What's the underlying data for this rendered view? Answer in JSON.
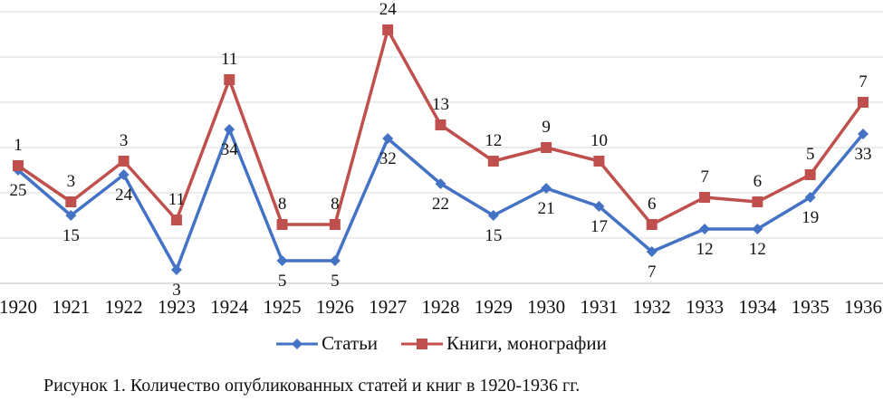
{
  "chart_data": {
    "type": "line",
    "categories": [
      "1920",
      "1921",
      "1922",
      "1923",
      "1924",
      "1925",
      "1926",
      "1927",
      "1928",
      "1929",
      "1930",
      "1931",
      "1932",
      "1933",
      "1934",
      "1935",
      "1936"
    ],
    "series": [
      {
        "name": "Статьи",
        "color": "#4472c4",
        "marker": "diamond",
        "values": [
          25,
          15,
          24,
          3,
          34,
          5,
          5,
          32,
          22,
          15,
          21,
          17,
          7,
          12,
          12,
          19,
          33
        ],
        "labels": [
          "25",
          "15",
          "24",
          "3",
          "34",
          "5",
          "5",
          "32",
          "22",
          "15",
          "21",
          "17",
          "7",
          "12",
          "12",
          "19",
          "33"
        ]
      },
      {
        "name": "Книги, монографии",
        "color": "#c0504d",
        "marker": "square",
        "values": [
          1,
          3,
          3,
          11,
          11,
          8,
          8,
          24,
          13,
          12,
          9,
          10,
          6,
          7,
          6,
          5,
          7
        ],
        "labels": [
          "1",
          "3",
          "3",
          "11",
          "11",
          "8",
          "8",
          "24",
          "13",
          "12",
          "9",
          "10",
          "6",
          "7",
          "6",
          "5",
          "7"
        ]
      }
    ],
    "stacked": true,
    "ylim": [
      0,
      60
    ],
    "grid": true,
    "legend_position": "bottom",
    "title": "",
    "xlabel": "",
    "ylabel": ""
  },
  "caption": "Рисунок 1. Количество опубликованных статей и книг в 1920-1936 гг."
}
